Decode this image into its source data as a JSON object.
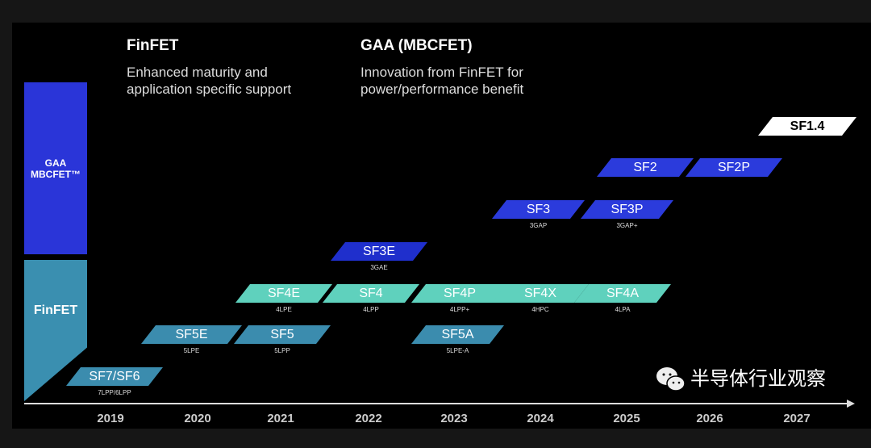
{
  "headers": {
    "finfet": {
      "title": "FinFET",
      "line1": "Enhanced maturity and",
      "line2": "application specific support"
    },
    "gaa": {
      "title": "GAA (MBCFET)",
      "line1": "Innovation from FinFET for",
      "line2": "power/performance benefit"
    }
  },
  "categories": {
    "gaa_line1": "GAA",
    "gaa_line2": "MBCFET™",
    "finfet": "FinFET"
  },
  "nodes": [
    {
      "name": "SF7/SF6",
      "sub": "7LPP/6LPP"
    },
    {
      "name": "SF5E",
      "sub": "5LPE"
    },
    {
      "name": "SF5",
      "sub": "5LPP"
    },
    {
      "name": "SF5A",
      "sub": "5LPE-A"
    },
    {
      "name": "SF4E",
      "sub": "4LPE"
    },
    {
      "name": "SF4",
      "sub": "4LPP"
    },
    {
      "name": "SF4P",
      "sub": "4LPP+"
    },
    {
      "name": "SF4X",
      "sub": "4HPC"
    },
    {
      "name": "SF4A",
      "sub": "4LPA"
    },
    {
      "name": "SF3E",
      "sub": "3GAE"
    },
    {
      "name": "SF3",
      "sub": "3GAP"
    },
    {
      "name": "SF3P",
      "sub": "3GAP+"
    },
    {
      "name": "SF2",
      "sub": ""
    },
    {
      "name": "SF2P",
      "sub": ""
    },
    {
      "name": "SF1.4",
      "sub": ""
    }
  ],
  "years": [
    "2019",
    "2020",
    "2021",
    "2022",
    "2023",
    "2024",
    "2025",
    "2026",
    "2027"
  ],
  "watermark": "半导体行业观察",
  "colors": {
    "finfet_dark": "#3b8cae",
    "finfet_light": "#5fd1bd",
    "gaa_blue": "#2b3bdc",
    "gaa_box": "#2a35d8",
    "finfet_box": "#3a8fb0"
  }
}
